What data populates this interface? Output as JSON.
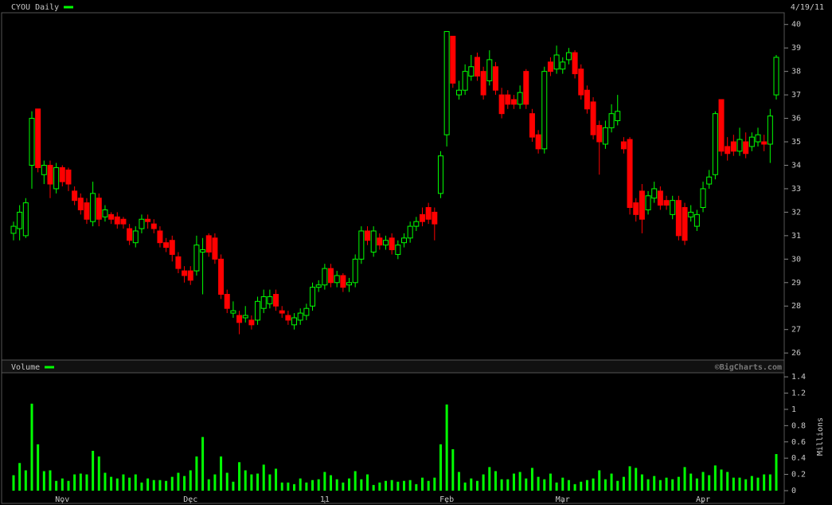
{
  "chart_data": [
    {
      "type": "candlestick",
      "title": "CYOU Daily",
      "date": "4/19/11",
      "watermark": "©BigCharts.com",
      "up_color": "#00ff00",
      "down_color": "#ff0000",
      "ylim": [
        25.7,
        40.5
      ],
      "yticks": [
        26,
        27,
        28,
        29,
        30,
        31,
        32,
        33,
        34,
        35,
        36,
        37,
        38,
        39,
        40
      ],
      "open": [
        31.1,
        31.3,
        31.0,
        34.0,
        36.4,
        33.6,
        34.0,
        33.0,
        33.9,
        33.8,
        32.9,
        32.6,
        32.4,
        31.6,
        32.6,
        31.8,
        31.9,
        31.8,
        31.7,
        31.3,
        30.7,
        31.3,
        31.7,
        31.5,
        31.2,
        30.7,
        30.8,
        30.1,
        29.5,
        29.5,
        29.5,
        30.3,
        31.0,
        30.9,
        30.0,
        28.5,
        27.7,
        27.6,
        27.5,
        27.4,
        27.4,
        27.9,
        28.1,
        28.5,
        27.8,
        27.6,
        27.2,
        27.4,
        27.6,
        28.0,
        28.8,
        28.9,
        29.6,
        29.0,
        29.3,
        28.9,
        29.0,
        30.0,
        31.2,
        30.3,
        30.9,
        30.6,
        30.9,
        30.2,
        30.7,
        30.9,
        31.4,
        31.9,
        32.2,
        32.0,
        32.8,
        35.3,
        39.5,
        37.0,
        37.2,
        37.8,
        38.6,
        38.0,
        37.6,
        38.2,
        37.0,
        37.0,
        36.8,
        36.6,
        38.0,
        36.2,
        35.3,
        34.7,
        38.4,
        38.1,
        38.1,
        38.5,
        38.8,
        38.1,
        37.2,
        36.7,
        35.7,
        34.9,
        35.6,
        35.9,
        35.0,
        35.1,
        32.4,
        32.9,
        32.1,
        32.6,
        32.9,
        32.5,
        31.9,
        32.5,
        32.2,
        31.8,
        31.4,
        32.2,
        33.2,
        33.6,
        36.8,
        34.8,
        35.0,
        34.6,
        35.0,
        34.8,
        35.0,
        35.0,
        34.9,
        37.0
      ],
      "high": [
        31.6,
        32.3,
        32.6,
        36.3,
        36.4,
        34.2,
        34.2,
        34.1,
        34.0,
        33.9,
        33.1,
        32.8,
        32.6,
        33.3,
        32.8,
        32.3,
        32.0,
        32.0,
        31.8,
        31.5,
        31.4,
        31.9,
        31.9,
        31.7,
        31.4,
        30.9,
        31.0,
        30.3,
        29.7,
        29.7,
        31.0,
        30.9,
        31.1,
        31.1,
        30.2,
        28.7,
        28.2,
        27.8,
        28.0,
        27.6,
        28.4,
        28.7,
        28.7,
        28.7,
        28.0,
        27.8,
        27.7,
        27.9,
        28.1,
        29.0,
        29.1,
        29.8,
        29.8,
        29.5,
        29.4,
        29.2,
        30.2,
        31.4,
        31.4,
        31.4,
        31.1,
        31.0,
        31.1,
        30.8,
        31.1,
        31.6,
        31.8,
        32.2,
        32.4,
        32.2,
        34.6,
        39.7,
        39.5,
        37.6,
        38.3,
        38.7,
        38.8,
        38.2,
        38.9,
        38.4,
        37.3,
        37.2,
        37.0,
        37.4,
        38.1,
        36.4,
        35.5,
        38.2,
        38.6,
        39.1,
        38.6,
        39.0,
        38.9,
        38.3,
        37.4,
        36.9,
        35.9,
        35.9,
        36.6,
        37.0,
        35.2,
        35.2,
        32.6,
        33.2,
        32.9,
        33.3,
        33.1,
        32.7,
        32.7,
        32.7,
        32.4,
        32.3,
        32.1,
        33.3,
        33.8,
        36.3,
        36.8,
        35.2,
        35.3,
        35.6,
        35.4,
        35.4,
        35.6,
        35.3,
        36.4,
        38.7
      ],
      "low": [
        30.8,
        30.8,
        30.9,
        33.0,
        33.7,
        33.2,
        32.6,
        32.8,
        33.1,
        32.9,
        32.3,
        31.9,
        31.5,
        31.4,
        31.4,
        31.6,
        31.5,
        31.3,
        31.3,
        30.6,
        30.5,
        31.1,
        31.3,
        31.1,
        30.5,
        30.3,
        29.9,
        29.4,
        29.0,
        28.9,
        29.3,
        28.5,
        30.1,
        29.8,
        28.3,
        27.7,
        27.5,
        26.8,
        27.3,
        27.0,
        27.2,
        27.7,
        27.9,
        27.8,
        27.5,
        27.2,
        27.0,
        27.2,
        27.4,
        27.8,
        28.6,
        28.7,
        28.8,
        28.8,
        28.6,
        28.6,
        28.8,
        29.8,
        30.6,
        30.1,
        30.4,
        30.4,
        30.2,
        30.0,
        30.5,
        30.7,
        31.2,
        31.4,
        31.5,
        30.8,
        32.6,
        34.8,
        37.3,
        36.8,
        37.0,
        37.6,
        37.6,
        36.8,
        37.4,
        37.0,
        36.0,
        36.4,
        36.4,
        36.4,
        36.4,
        35.0,
        34.5,
        34.5,
        37.8,
        37.9,
        37.9,
        38.3,
        37.7,
        36.8,
        36.2,
        35.1,
        33.6,
        34.7,
        35.4,
        35.7,
        34.5,
        31.9,
        31.6,
        31.1,
        31.9,
        32.4,
        32.1,
        32.1,
        31.7,
        30.8,
        30.6,
        31.6,
        31.2,
        32.0,
        33.0,
        33.4,
        34.4,
        34.2,
        34.4,
        34.4,
        34.3,
        34.6,
        34.8,
        34.6,
        34.1,
        36.8
      ],
      "close": [
        31.4,
        32.0,
        32.4,
        36.0,
        33.9,
        34.0,
        33.2,
        33.9,
        33.3,
        33.2,
        32.5,
        32.1,
        31.7,
        32.8,
        31.7,
        32.1,
        31.7,
        31.5,
        31.5,
        30.8,
        31.2,
        31.7,
        31.6,
        31.3,
        30.7,
        30.5,
        30.2,
        29.6,
        29.3,
        29.1,
        30.6,
        30.4,
        30.3,
        30.0,
        28.5,
        27.9,
        27.8,
        27.3,
        27.6,
        27.2,
        28.2,
        28.4,
        28.4,
        28.0,
        27.7,
        27.4,
        27.5,
        27.7,
        27.9,
        28.8,
        28.9,
        29.6,
        29.0,
        29.3,
        28.8,
        29.0,
        30.0,
        31.2,
        30.8,
        31.2,
        30.6,
        30.8,
        30.4,
        30.6,
        30.9,
        31.4,
        31.6,
        31.6,
        31.7,
        31.5,
        34.4,
        39.7,
        37.5,
        37.2,
        38.0,
        38.2,
        37.8,
        37.0,
        38.5,
        37.2,
        36.2,
        36.6,
        36.6,
        37.1,
        36.6,
        35.2,
        34.7,
        38.0,
        38.0,
        38.7,
        38.4,
        38.8,
        37.9,
        37.0,
        36.4,
        35.3,
        35.0,
        35.6,
        36.2,
        36.3,
        34.7,
        32.2,
        31.9,
        31.7,
        32.7,
        33.0,
        32.3,
        32.3,
        32.5,
        31.0,
        30.8,
        32.0,
        31.9,
        33.0,
        33.5,
        36.2,
        34.6,
        34.5,
        34.6,
        35.1,
        34.5,
        35.2,
        35.3,
        34.9,
        36.1,
        38.6
      ]
    },
    {
      "type": "bar",
      "title": "Volume",
      "y_label": "Millions",
      "color": "#00ff00",
      "ylim": [
        0,
        1.45
      ],
      "yticks": [
        0,
        0.2,
        0.4,
        0.6,
        0.8,
        1,
        1.2,
        1.4
      ],
      "categories": [
        null,
        null,
        null,
        null,
        null,
        null,
        null,
        null,
        "Nov",
        null,
        null,
        null,
        null,
        null,
        null,
        null,
        null,
        null,
        null,
        null,
        null,
        null,
        null,
        null,
        null,
        null,
        null,
        null,
        null,
        "Dec",
        null,
        null,
        null,
        null,
        null,
        null,
        null,
        null,
        null,
        null,
        null,
        null,
        null,
        null,
        null,
        null,
        null,
        null,
        null,
        null,
        null,
        "11",
        null,
        null,
        null,
        null,
        null,
        null,
        null,
        null,
        null,
        null,
        null,
        null,
        null,
        null,
        null,
        null,
        null,
        null,
        null,
        "Feb",
        null,
        null,
        null,
        null,
        null,
        null,
        null,
        null,
        null,
        null,
        null,
        null,
        null,
        null,
        null,
        null,
        null,
        null,
        "Mar",
        null,
        null,
        null,
        null,
        null,
        null,
        null,
        null,
        null,
        null,
        null,
        null,
        null,
        null,
        null,
        null,
        null,
        null,
        null,
        null,
        null,
        null,
        "Apr",
        null,
        null,
        null,
        null,
        null,
        null,
        null,
        null,
        null,
        null,
        null,
        null
      ],
      "values": [
        0.19,
        0.34,
        0.25,
        1.07,
        0.57,
        0.24,
        0.25,
        0.12,
        0.15,
        0.12,
        0.2,
        0.21,
        0.2,
        0.49,
        0.42,
        0.22,
        0.17,
        0.15,
        0.2,
        0.16,
        0.2,
        0.1,
        0.15,
        0.13,
        0.13,
        0.12,
        0.17,
        0.22,
        0.18,
        0.25,
        0.42,
        0.66,
        0.14,
        0.2,
        0.42,
        0.22,
        0.11,
        0.35,
        0.25,
        0.2,
        0.21,
        0.32,
        0.2,
        0.27,
        0.1,
        0.1,
        0.08,
        0.15,
        0.1,
        0.13,
        0.14,
        0.23,
        0.19,
        0.14,
        0.1,
        0.15,
        0.24,
        0.14,
        0.2,
        0.07,
        0.1,
        0.12,
        0.13,
        0.11,
        0.12,
        0.13,
        0.08,
        0.16,
        0.12,
        0.16,
        0.57,
        1.06,
        0.51,
        0.23,
        0.1,
        0.15,
        0.12,
        0.2,
        0.29,
        0.24,
        0.14,
        0.14,
        0.21,
        0.23,
        0.15,
        0.28,
        0.17,
        0.14,
        0.21,
        0.1,
        0.16,
        0.13,
        0.08,
        0.11,
        0.13,
        0.15,
        0.25,
        0.14,
        0.21,
        0.12,
        0.17,
        0.3,
        0.28,
        0.2,
        0.14,
        0.18,
        0.13,
        0.16,
        0.14,
        0.17,
        0.29,
        0.21,
        0.15,
        0.23,
        0.19,
        0.31,
        0.26,
        0.23,
        0.16,
        0.16,
        0.14,
        0.18,
        0.16,
        0.2,
        0.2,
        0.45
      ]
    }
  ]
}
